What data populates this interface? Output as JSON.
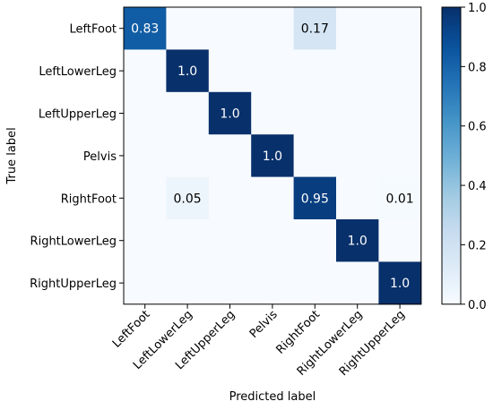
{
  "chart_data": {
    "type": "heatmap",
    "title": "",
    "xlabel": "Predicted label",
    "ylabel": "True label",
    "x_categories": [
      "LeftFoot",
      "LeftLowerLeg",
      "LeftUpperLeg",
      "Pelvis",
      "RightFoot",
      "RightLowerLeg",
      "RightUpperLeg"
    ],
    "y_categories": [
      "LeftFoot",
      "LeftLowerLeg",
      "LeftUpperLeg",
      "Pelvis",
      "RightFoot",
      "RightLowerLeg",
      "RightUpperLeg"
    ],
    "values": [
      [
        0.83,
        0,
        0,
        0,
        0.17,
        0,
        0
      ],
      [
        0,
        1.0,
        0,
        0,
        0,
        0,
        0
      ],
      [
        0,
        0,
        1.0,
        0,
        0,
        0,
        0
      ],
      [
        0,
        0,
        0,
        1.0,
        0,
        0,
        0
      ],
      [
        0,
        0.05,
        0,
        0,
        0.95,
        0,
        0.01
      ],
      [
        0,
        0,
        0,
        0,
        0,
        1.0,
        0
      ],
      [
        0,
        0,
        0,
        0,
        0,
        0,
        1.0
      ]
    ],
    "cell_labels": [
      [
        "0.83",
        "",
        "",
        "",
        "0.17",
        "",
        ""
      ],
      [
        "",
        "1.0",
        "",
        "",
        "",
        "",
        ""
      ],
      [
        "",
        "",
        "1.0",
        "",
        "",
        "",
        ""
      ],
      [
        "",
        "",
        "",
        "1.0",
        "",
        "",
        ""
      ],
      [
        "",
        "0.05",
        "",
        "",
        "0.95",
        "",
        "0.01"
      ],
      [
        "",
        "",
        "",
        "",
        "",
        "1.0",
        ""
      ],
      [
        "",
        "",
        "",
        "",
        "",
        "",
        "1.0"
      ]
    ],
    "x_tick_rotation": 45,
    "colormap": "Blues",
    "colormap_low": "#f7fbff",
    "colormap_high": "#08306b",
    "colorbar": {
      "range": [
        0.0,
        1.0
      ],
      "ticks": [
        0.0,
        0.2,
        0.4,
        0.6,
        0.8,
        1.0
      ],
      "tick_labels": [
        "0.0",
        "0.2",
        "0.4",
        "0.6",
        "0.8",
        "1.0"
      ]
    },
    "grid": false,
    "legend": "colorbar-right"
  }
}
